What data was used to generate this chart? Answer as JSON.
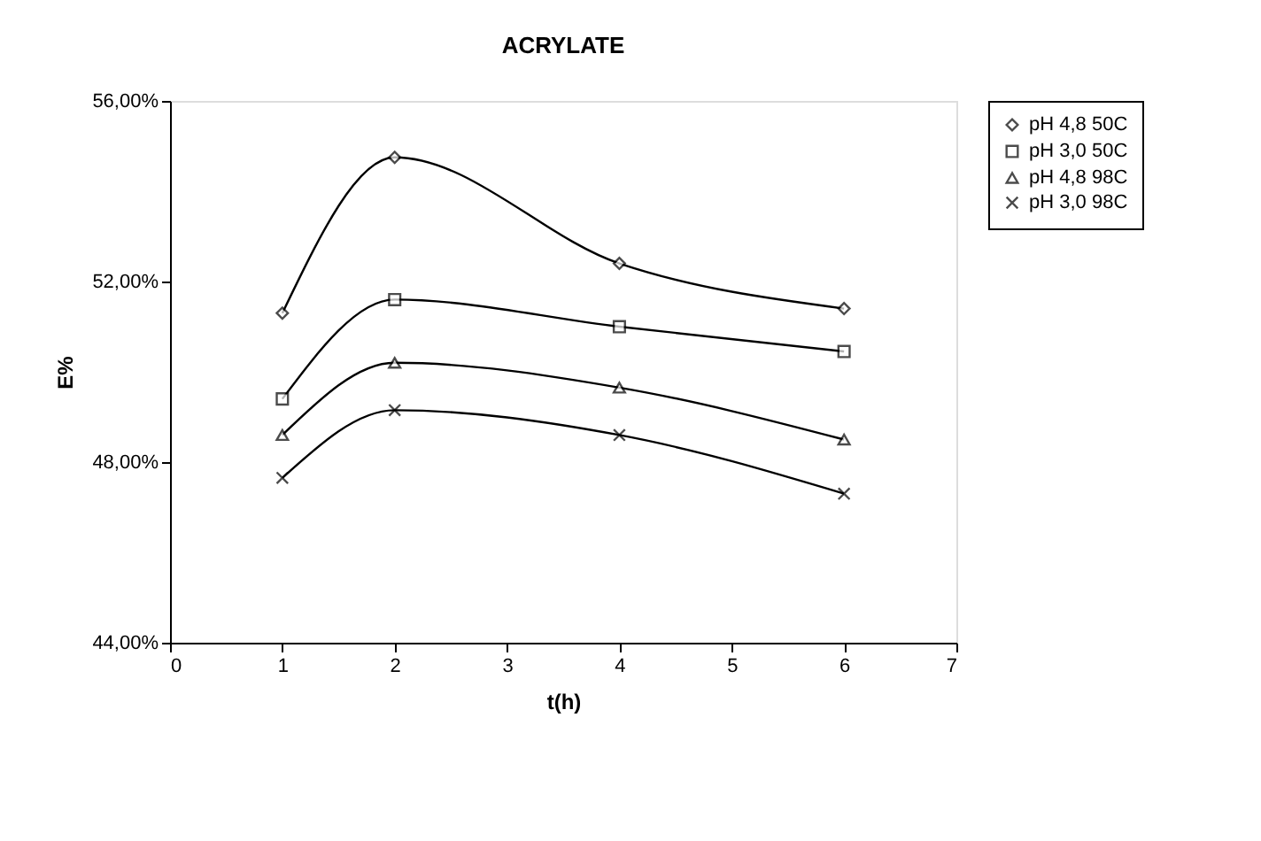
{
  "chart_data": {
    "type": "line",
    "title": "ACRYLATE",
    "xlabel": "t(h)",
    "ylabel": "E%",
    "x": [
      1,
      2,
      4,
      6
    ],
    "series": [
      {
        "name": "pH 4,8 50C",
        "color": "#000000",
        "marker": "diamond",
        "values": [
          51.3,
          54.75,
          52.4,
          51.4
        ]
      },
      {
        "name": "pH 3,0 50C",
        "color": "#000000",
        "marker": "square",
        "values": [
          49.4,
          51.6,
          51.0,
          50.45
        ]
      },
      {
        "name": "pH 4,8 98C",
        "color": "#000000",
        "marker": "triangle",
        "values": [
          48.6,
          50.2,
          49.65,
          48.5
        ]
      },
      {
        "name": "pH 3,0 98C",
        "color": "#000000",
        "marker": "cross",
        "values": [
          47.65,
          49.15,
          48.6,
          47.3
        ]
      }
    ],
    "xlim": [
      0,
      7
    ],
    "xticks": [
      0,
      1,
      2,
      3,
      4,
      5,
      6,
      7
    ],
    "ylim": [
      44,
      56
    ],
    "yticks": [
      {
        "value": 44,
        "label": "44,00%"
      },
      {
        "value": 48,
        "label": "48,00%"
      },
      {
        "value": 52,
        "label": "52,00%"
      },
      {
        "value": 56,
        "label": "56,00%"
      }
    ],
    "grid": false,
    "legend": "right",
    "line_style": "solid"
  }
}
